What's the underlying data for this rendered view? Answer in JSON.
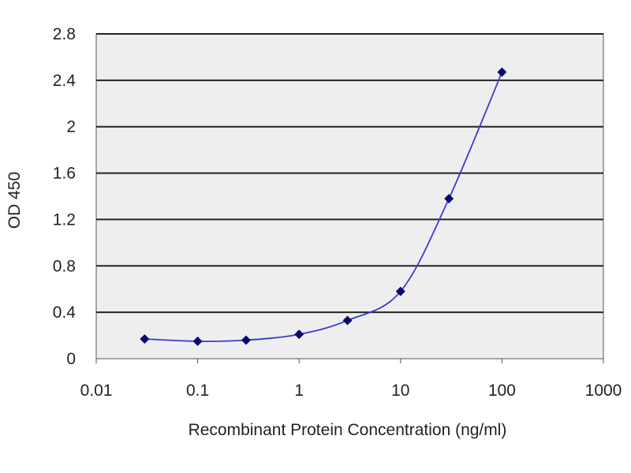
{
  "chart_data": {
    "type": "line",
    "title": "",
    "xlabel": "Recombinant Protein Concentration (ng/ml)",
    "ylabel": "OD 450",
    "x_scale": "log",
    "xlim": [
      0.01,
      1000
    ],
    "ylim": [
      0,
      2.8
    ],
    "x_ticks": [
      0.01,
      0.1,
      1,
      10,
      100,
      1000
    ],
    "x_tick_labels": [
      "0.01",
      "0.1",
      "1",
      "10",
      "100",
      "1000"
    ],
    "y_ticks": [
      0,
      0.4,
      0.8,
      1.2,
      1.6,
      2,
      2.4,
      2.8
    ],
    "y_tick_labels": [
      "0",
      "0.4",
      "0.8",
      "1.2",
      "1.6",
      "2",
      "2.4",
      "2.8"
    ],
    "grid": "horizontal",
    "legend": "none",
    "series": [
      {
        "x": [
          0.03,
          0.1,
          0.3,
          1,
          3,
          10,
          30,
          100
        ],
        "y": [
          0.17,
          0.15,
          0.16,
          0.21,
          0.33,
          0.58,
          1.38,
          2.47
        ],
        "line_color": "#3b3bd0",
        "marker_color": "#0a0a6e",
        "marker": "diamond"
      }
    ],
    "plot_background": "#eeeeee",
    "grid_color": "#222222"
  }
}
